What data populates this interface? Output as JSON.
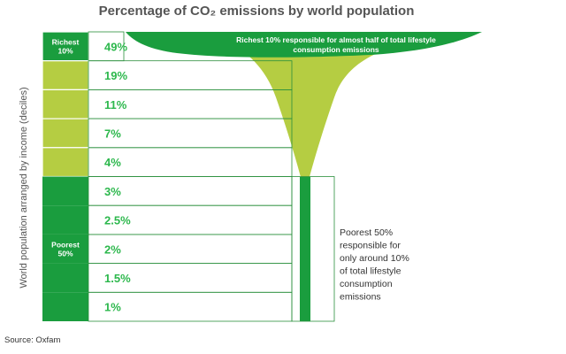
{
  "chart_data": {
    "type": "table",
    "title": "Percentage of CO₂ emissions by world population",
    "ylabel": "World population arranged by income (deciles)",
    "categories": [
      "Richest 10%",
      "",
      "",
      "",
      "",
      "",
      "",
      "Poorest 50%",
      "",
      ""
    ],
    "values": [
      49,
      19,
      11,
      7,
      4,
      3,
      2.5,
      2,
      1.5,
      1
    ],
    "value_labels": [
      "49%",
      "19%",
      "11%",
      "7%",
      "4%",
      "3%",
      "2.5%",
      "2%",
      "1.5%",
      "1%"
    ],
    "tiers": [
      {
        "label_lines": [
          "Richest",
          "10%"
        ],
        "decile_start": 0,
        "decile_end": 0
      },
      {
        "label_lines": [
          "Poorest",
          "50%"
        ],
        "decile_start": 5,
        "decile_end": 9
      }
    ],
    "annotations": {
      "top_lines": [
        "Richest 10% responsible for almost half of total lifestyle",
        "consumption emissions"
      ],
      "right_lines": [
        "Poorest 50%",
        "responsible for",
        "only around 10%",
        "of total lifestyle",
        "consumption",
        "emissions"
      ]
    },
    "source": "Source: Oxfam",
    "colors": {
      "dark_green": "#1a9d3e",
      "light_green": "#b5cd42",
      "pct_text": "#2db84d",
      "border": "#2a8f3c"
    }
  }
}
